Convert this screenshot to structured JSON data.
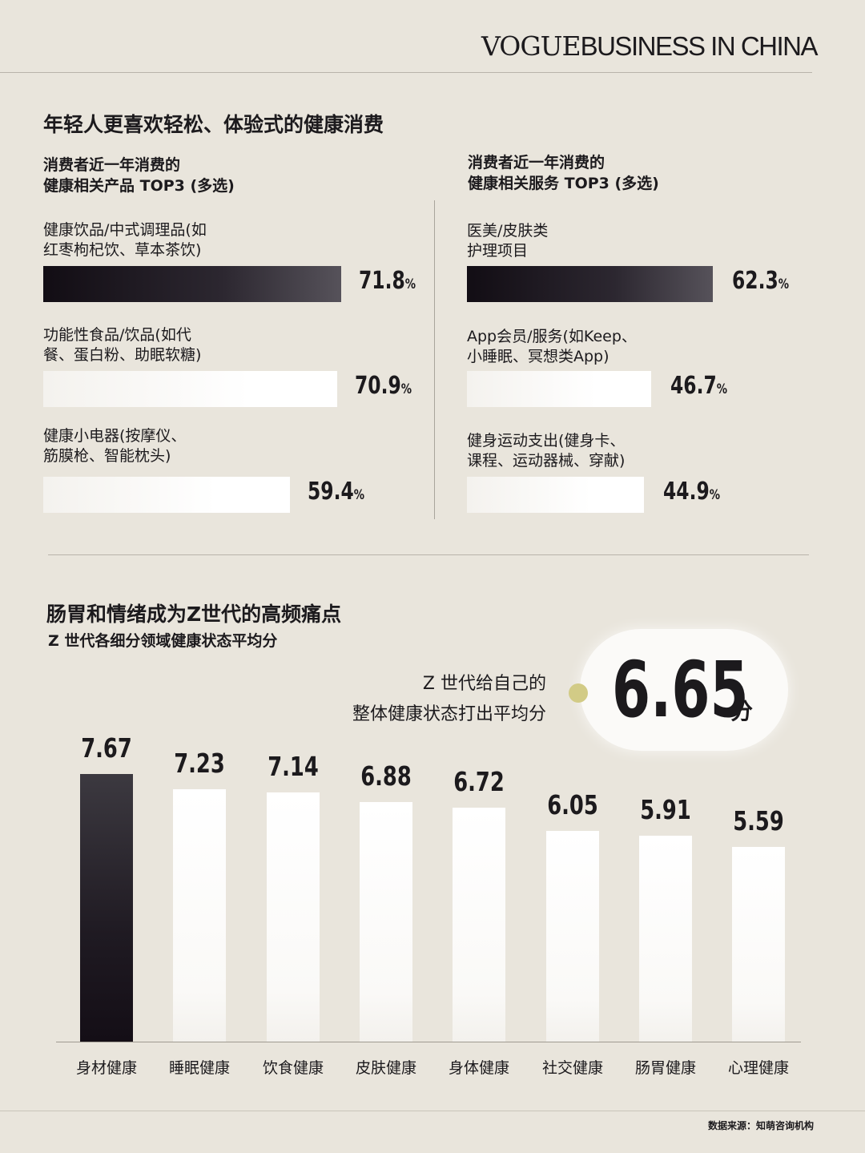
{
  "brand": {
    "vogue": "VOGUE",
    "rest": "BUSINESS IN CHINA"
  },
  "section1": {
    "title": "年轻人更喜欢轻松、体验式的健康消费",
    "left": {
      "subtitle_line1": "消费者近一年消费的",
      "subtitle_line2": "健康相关产品 TOP3 (多选)"
    },
    "right": {
      "subtitle_line1": "消费者近一年消费的",
      "subtitle_line2": "健康相关服务 TOP3 (多选)"
    }
  },
  "section2": {
    "title": "肠胃和情绪成为Z世代的高频痛点",
    "subtitle": "Z 世代各细分领域健康状态平均分",
    "overall_caption_line1": "Z 世代给自己的",
    "overall_caption_line2": "整体健康状态打出平均分",
    "overall_score": "6.65",
    "overall_unit": "分"
  },
  "source": "数据来源：知萌咨询机构",
  "colors": {
    "background": "#e9e5dc",
    "dark_bar": "#1c1a1d",
    "light_bar": "#ffffff",
    "accent_dot": "#d2cb86"
  },
  "chart_data": [
    {
      "type": "bar",
      "orientation": "horizontal",
      "title": "消费者近一年消费的健康相关产品 TOP3 (多选)",
      "categories": [
        "健康饮品/中式调理品(如红枣枸杞饮、草本茶饮)",
        "功能性食品/饮品(如代餐、蛋白粉、助眠软糖)",
        "健康小电器(按摩仪、筋膜枪、智能枕头)"
      ],
      "category_lines": [
        [
          "健康饮品/中式调理品(如",
          "红枣枸杞饮、草本茶饮)"
        ],
        [
          "功能性食品/饮品(如代",
          "餐、蛋白粉、助眠软糖)"
        ],
        [
          "健康小电器(按摩仪、",
          "筋膜枪、智能枕头)"
        ]
      ],
      "values": [
        71.8,
        70.9,
        59.4
      ],
      "value_labels": [
        "71.8",
        "70.9",
        "59.4"
      ],
      "unit": "%"
    },
    {
      "type": "bar",
      "orientation": "horizontal",
      "title": "消费者近一年消费的健康相关服务 TOP3 (多选)",
      "categories": [
        "医美/皮肤类护理项目",
        "App会员/服务(如Keep、小睡眠、冥想类App)",
        "健身运动支出(健身卡、课程、运动器械、穿献)"
      ],
      "category_lines": [
        [
          "医美/皮肤类",
          "护理项目"
        ],
        [
          "App会员/服务(如Keep、",
          "小睡眠、冥想类App)"
        ],
        [
          "健身运动支出(健身卡、",
          "课程、运动器械、穿献)"
        ]
      ],
      "values": [
        62.3,
        46.7,
        44.9
      ],
      "value_labels": [
        "62.3",
        "46.7",
        "44.9"
      ],
      "unit": "%"
    },
    {
      "type": "bar",
      "orientation": "vertical",
      "title": "Z 世代各细分领域健康状态平均分",
      "categories": [
        "身材健康",
        "睡眠健康",
        "饮食健康",
        "皮肤健康",
        "身体健康",
        "社交健康",
        "肠胃健康",
        "心理健康"
      ],
      "values": [
        7.67,
        7.23,
        7.14,
        6.88,
        6.72,
        6.05,
        5.91,
        5.59
      ],
      "value_labels": [
        "7.67",
        "7.23",
        "7.14",
        "6.88",
        "6.72",
        "6.05",
        "5.91",
        "5.59"
      ],
      "ylim": [
        0,
        10
      ]
    }
  ]
}
